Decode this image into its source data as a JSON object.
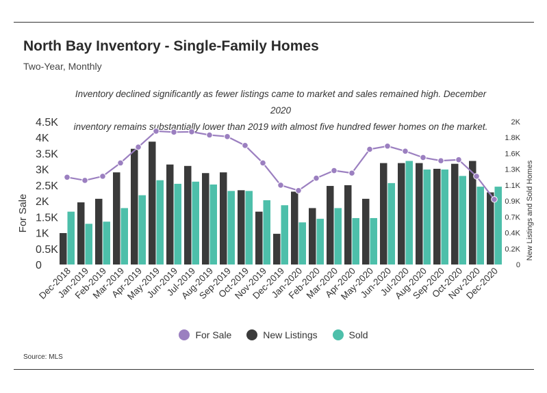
{
  "header": {
    "title": "North Bay Inventory - Single-Family Homes",
    "subtitle": "Two-Year, Monthly",
    "annotation_line1": "Inventory declined significantly as fewer listings came to market and sales remained high. December 2020",
    "annotation_line2": "inventory remains substantially lower than 2019 with almost five hundred fewer homes on the market."
  },
  "source": "Source:  MLS",
  "colors": {
    "for_sale": "#9b7fc0",
    "new_listings": "#3a3a3a",
    "sold": "#4dbfaa"
  },
  "chart_data": {
    "type": "bar",
    "categories": [
      "Dec-2018",
      "Jan-2019",
      "Feb-2019",
      "Mar-2019",
      "Apr-2019",
      "May-2019",
      "Jun-2019",
      "Jul-2019",
      "Aug-2019",
      "Sep-2019",
      "Oct-2019",
      "Nov-2019",
      "Dec-2019",
      "Jan-2020",
      "Feb-2020",
      "Mar-2020",
      "Apr-2020",
      "May-2020",
      "Jun-2020",
      "Jul-2020",
      "Aug-2020",
      "Sep-2020",
      "Oct-2020",
      "Nov-2020",
      "Dec-2020"
    ],
    "series": [
      {
        "name": "For Sale",
        "type": "line",
        "axis": "left",
        "values": [
          2750,
          2650,
          2780,
          3200,
          3700,
          4200,
          4170,
          4180,
          4080,
          4030,
          3750,
          3200,
          2500,
          2330,
          2720,
          2960,
          2880,
          3630,
          3730,
          3570,
          3370,
          3270,
          3300,
          2780,
          2050
        ]
      },
      {
        "name": "New Listings",
        "type": "bar",
        "axis": "right",
        "values": [
          440,
          870,
          920,
          1290,
          1620,
          1720,
          1400,
          1380,
          1280,
          1290,
          1040,
          740,
          430,
          1020,
          790,
          1100,
          1110,
          920,
          1420,
          1420,
          1420,
          1340,
          1410,
          1450,
          1010
        ]
      },
      {
        "name": "Sold",
        "type": "bar",
        "axis": "right",
        "values": [
          740,
          570,
          600,
          790,
          970,
          1180,
          1130,
          1160,
          1120,
          1030,
          1030,
          900,
          830,
          590,
          640,
          790,
          650,
          650,
          1140,
          1450,
          1330,
          1330,
          1240,
          1090,
          1090
        ]
      }
    ],
    "y_left": {
      "label": "For Sale",
      "ylim": [
        0,
        4500
      ],
      "ticks": [
        "0",
        "0.5K",
        "1K",
        "1.5K",
        "2K",
        "2.5K",
        "3K",
        "3.5K",
        "4K",
        "4.5K"
      ]
    },
    "y_right": {
      "label": "New Listings and Sold Homes",
      "ylim": [
        0,
        2000
      ],
      "ticks": [
        "0",
        "0.2K",
        "0.4K",
        "0.7K",
        "0.9K",
        "1.1K",
        "1.3K",
        "1.6K",
        "1.8K",
        "2K"
      ]
    },
    "legend": [
      "For Sale",
      "New Listings",
      "Sold"
    ],
    "legend_position": "bottom",
    "grid": false
  }
}
